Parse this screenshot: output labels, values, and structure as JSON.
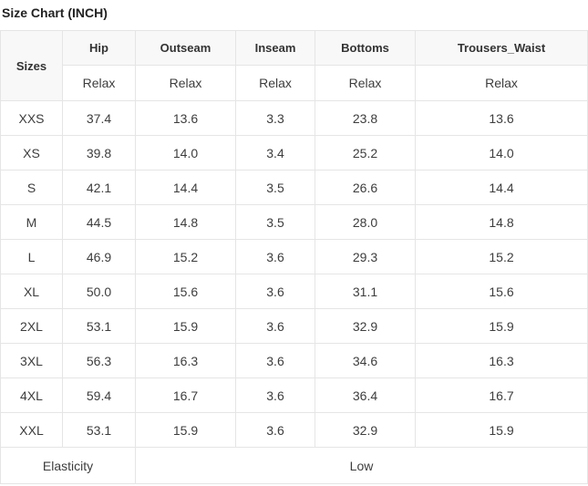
{
  "page": {
    "title": "Size Chart (INCH)"
  },
  "table": {
    "corner_header": "Sizes",
    "columns": [
      "Hip",
      "Outseam",
      "Inseam",
      "Bottoms",
      "Trousers_Waist"
    ],
    "fit_row": [
      "Relax",
      "Relax",
      "Relax",
      "Relax",
      "Relax"
    ],
    "rows": [
      {
        "size": "XXS",
        "values": [
          "37.4",
          "13.6",
          "3.3",
          "23.8",
          "13.6"
        ]
      },
      {
        "size": "XS",
        "values": [
          "39.8",
          "14.0",
          "3.4",
          "25.2",
          "14.0"
        ]
      },
      {
        "size": "S",
        "values": [
          "42.1",
          "14.4",
          "3.5",
          "26.6",
          "14.4"
        ]
      },
      {
        "size": "M",
        "values": [
          "44.5",
          "14.8",
          "3.5",
          "28.0",
          "14.8"
        ]
      },
      {
        "size": "L",
        "values": [
          "46.9",
          "15.2",
          "3.6",
          "29.3",
          "15.2"
        ]
      },
      {
        "size": "XL",
        "values": [
          "50.0",
          "15.6",
          "3.6",
          "31.1",
          "15.6"
        ]
      },
      {
        "size": "2XL",
        "values": [
          "53.1",
          "15.9",
          "3.6",
          "32.9",
          "15.9"
        ]
      },
      {
        "size": "3XL",
        "values": [
          "56.3",
          "16.3",
          "3.6",
          "34.6",
          "16.3"
        ]
      },
      {
        "size": "4XL",
        "values": [
          "59.4",
          "16.7",
          "3.6",
          "36.4",
          "16.7"
        ]
      },
      {
        "size": "XXL",
        "values": [
          "53.1",
          "15.9",
          "3.6",
          "32.9",
          "15.9"
        ]
      }
    ],
    "footer": {
      "label": "Elasticity",
      "value": "Low"
    },
    "colors": {
      "header_bg": "#f8f8f8",
      "border": "#e5e5e5",
      "text": "#3d3d3d"
    }
  }
}
